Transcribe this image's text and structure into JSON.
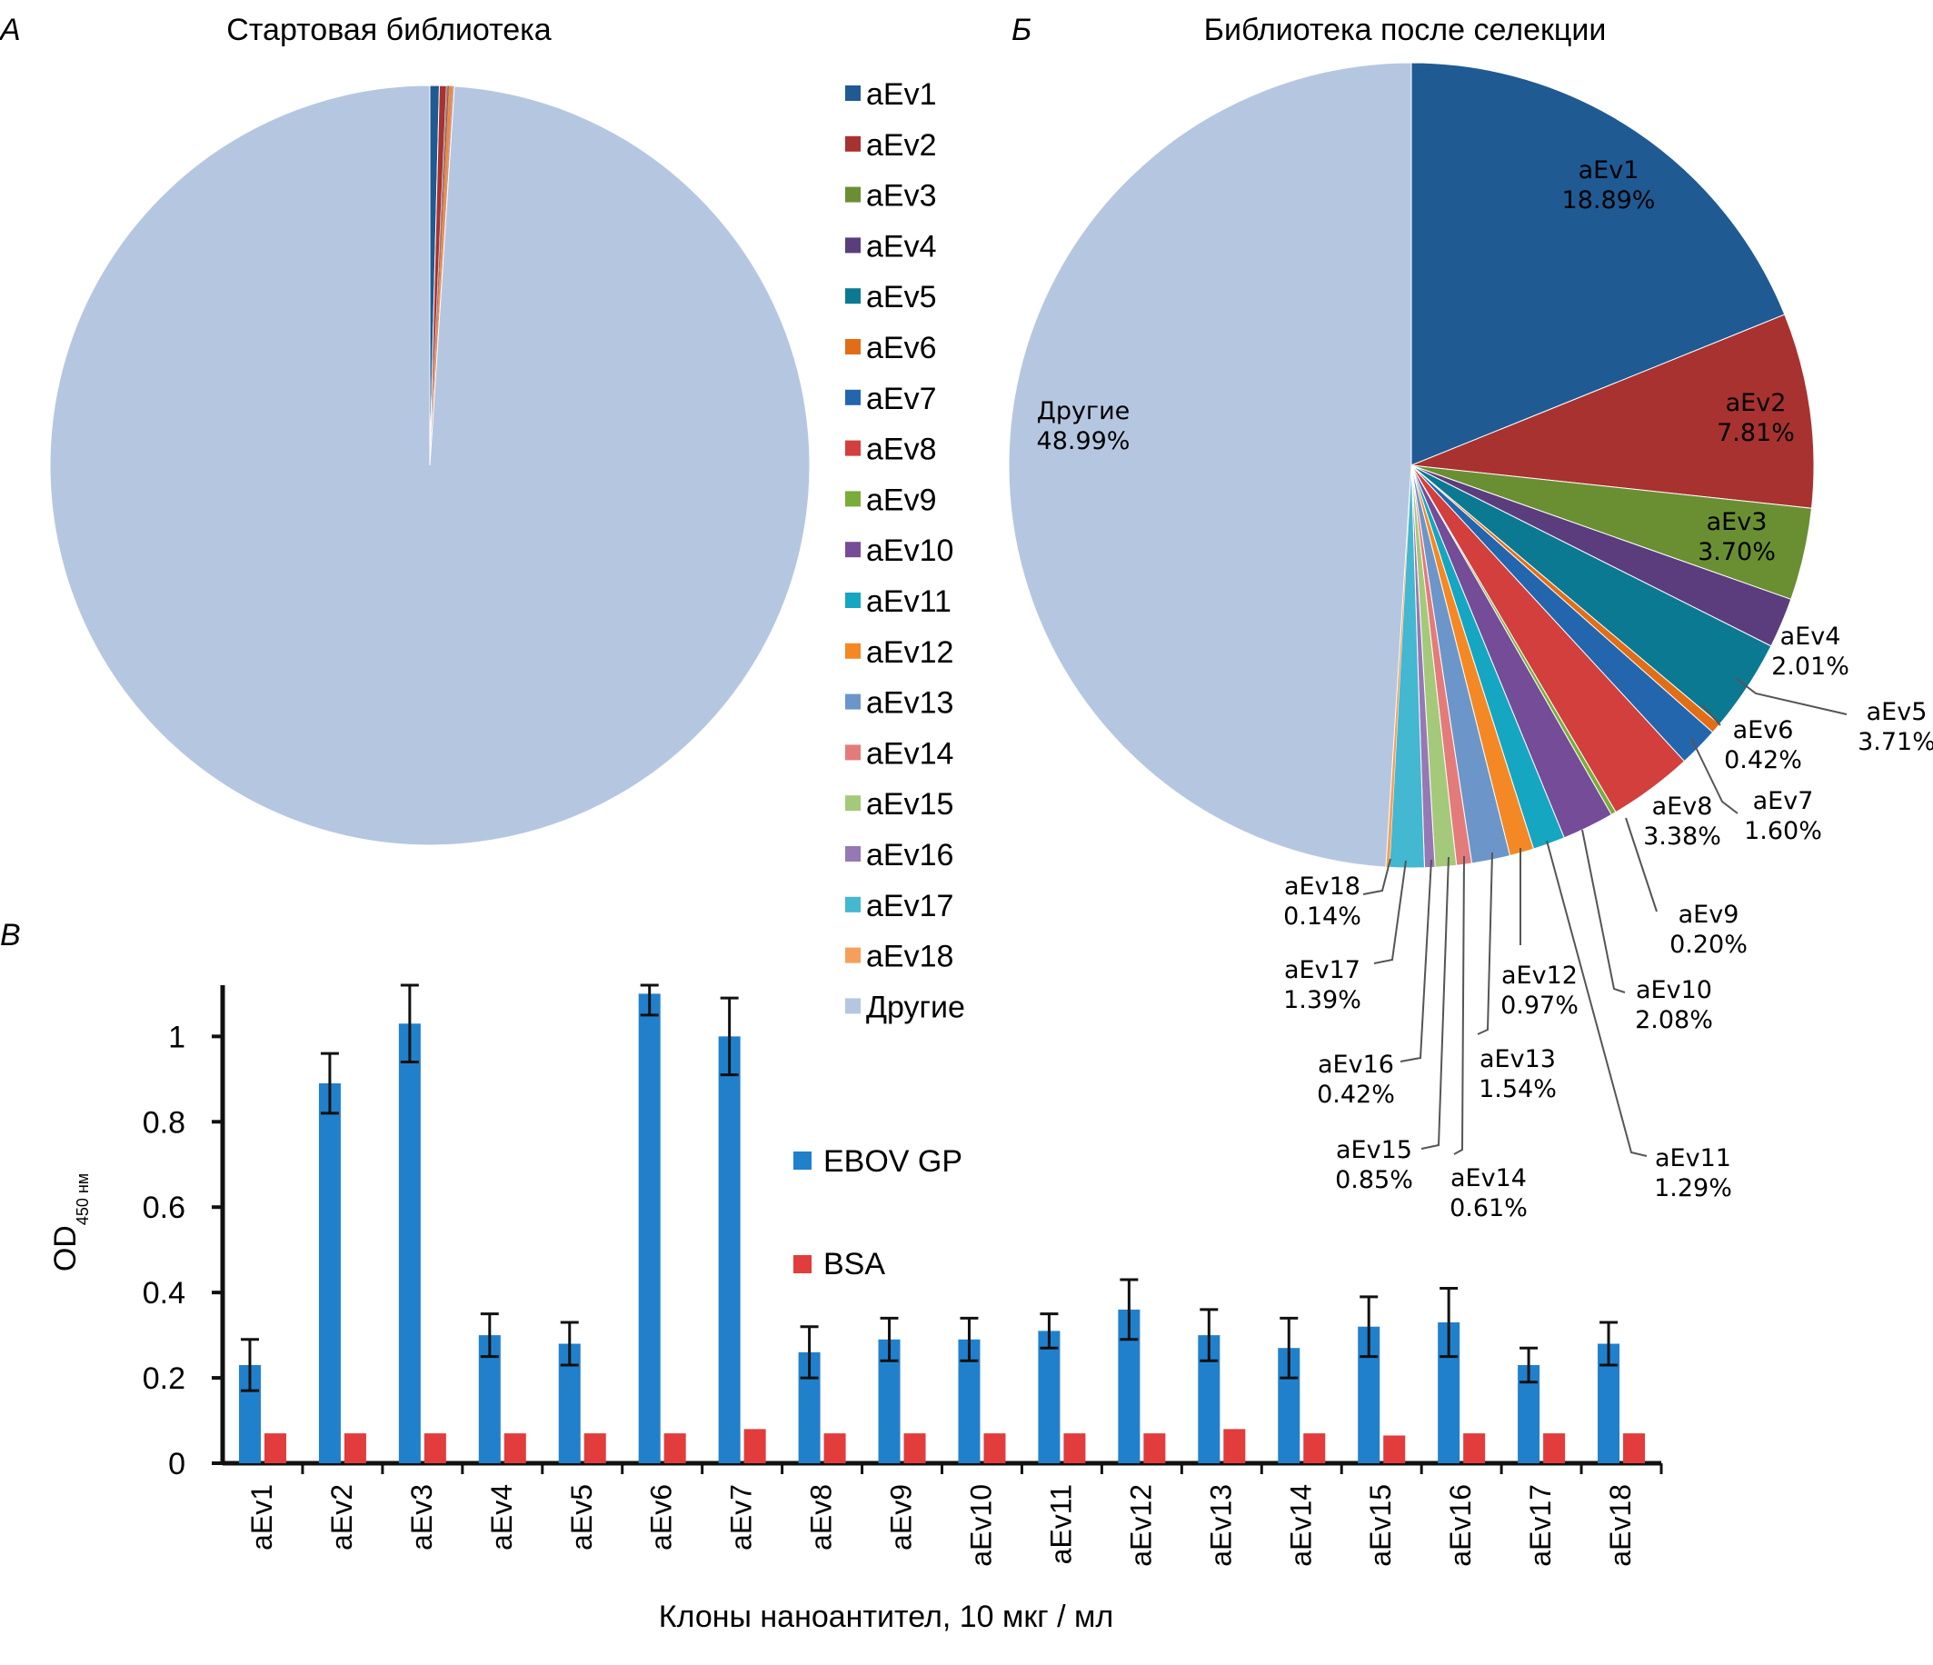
{
  "colors": {
    "aEv1": "#1f5a93",
    "aEv2": "#a83230",
    "aEv3": "#6a8f32",
    "aEv4": "#5b3d7d",
    "aEv5": "#0c7993",
    "aEv6": "#e16e17",
    "aEv7": "#2366ae",
    "aEv8": "#d23f3c",
    "aEv9": "#79ac3a",
    "aEv10": "#744c98",
    "aEv11": "#15a6c2",
    "aEv12": "#f48824",
    "aEv13": "#6c96c9",
    "aEv14": "#e47b7b",
    "aEv15": "#a5c97a",
    "aEv16": "#9678b4",
    "aEv17": "#44b7d1",
    "aEv18": "#f5a05a",
    "others": "#b5c7e0",
    "ebov": "#2180cc",
    "bsa": "#e23c3c",
    "axis": "#111111"
  },
  "legend": {
    "items": [
      "aEv1",
      "aEv2",
      "aEv3",
      "aEv4",
      "aEv5",
      "aEv6",
      "aEv7",
      "aEv8",
      "aEv9",
      "aEv10",
      "aEv11",
      "aEv12",
      "aEv13",
      "aEv14",
      "aEv15",
      "aEv16",
      "aEv17",
      "aEv18",
      "Другие"
    ]
  },
  "chart_data": [
    {
      "panel": "А",
      "type": "pie",
      "title": "Стартовая библиотека",
      "labels": [
        "aEv1",
        "aEv2",
        "aEv3",
        "aEv4",
        "aEv5",
        "aEv6",
        "aEv7",
        "aEv8",
        "aEv9",
        "aEv10",
        "aEv11",
        "aEv12",
        "aEv13",
        "aEv14",
        "aEv15",
        "aEv16",
        "aEv17",
        "aEv18",
        "Другие"
      ],
      "values": [
        0.4,
        0.3,
        0.01,
        0.01,
        0.01,
        0.01,
        0.01,
        0.05,
        0.01,
        0.01,
        0.01,
        0.1,
        0.01,
        0.05,
        0.01,
        0.01,
        0.01,
        0.01,
        99.0
      ],
      "start": "12 o'clock, clockwise",
      "legend": "right"
    },
    {
      "panel": "Б",
      "type": "pie",
      "title": "Библиотека после селекции",
      "labels": [
        "aEv1",
        "aEv2",
        "aEv3",
        "aEv4",
        "aEv5",
        "aEv6",
        "aEv7",
        "aEv8",
        "aEv9",
        "aEv10",
        "aEv11",
        "aEv12",
        "aEv13",
        "aEv14",
        "aEv15",
        "aEv16",
        "aEv17",
        "aEv18",
        "Другие"
      ],
      "values": [
        18.89,
        7.81,
        3.7,
        2.01,
        3.71,
        0.42,
        1.6,
        3.38,
        0.2,
        2.08,
        1.29,
        0.97,
        1.54,
        0.61,
        0.85,
        0.42,
        1.39,
        0.14,
        48.99
      ],
      "value_labels": [
        "18.89%",
        "7.81%",
        "3.70%",
        "2.01%",
        "3.71%",
        "0.42%",
        "1.60%",
        "3.38%",
        "0.20%",
        "2.08%",
        "1.29%",
        "0.97%",
        "1.54%",
        "0.61%",
        "0.85%",
        "0.42%",
        "1.39%",
        "0.14%",
        "48.99%"
      ],
      "start": "12 o'clock, clockwise"
    },
    {
      "panel": "В",
      "type": "bar",
      "categories": [
        "aEv1",
        "aEv2",
        "aEv3",
        "aEv4",
        "aEv5",
        "aEv6",
        "aEv7",
        "aEv8",
        "aEv9",
        "aEv10",
        "aEv11",
        "aEv12",
        "aEv13",
        "aEv14",
        "aEv15",
        "aEv16",
        "aEv17",
        "aEv18"
      ],
      "series": [
        {
          "name": "EBOV GP",
          "values": [
            0.23,
            0.89,
            1.03,
            0.3,
            0.28,
            1.1,
            1.0,
            0.26,
            0.29,
            0.29,
            0.31,
            0.36,
            0.3,
            0.27,
            0.32,
            0.33,
            0.23,
            0.28
          ],
          "errors": [
            0.06,
            0.07,
            0.09,
            0.05,
            0.05,
            0.05,
            0.09,
            0.06,
            0.05,
            0.05,
            0.04,
            0.07,
            0.06,
            0.07,
            0.07,
            0.08,
            0.04,
            0.05
          ]
        },
        {
          "name": "BSA",
          "values": [
            0.07,
            0.07,
            0.07,
            0.07,
            0.07,
            0.07,
            0.08,
            0.07,
            0.07,
            0.07,
            0.07,
            0.07,
            0.08,
            0.07,
            0.065,
            0.07,
            0.07,
            0.07
          ]
        }
      ],
      "ylim": [
        0,
        1.12
      ],
      "yticks": [
        "0",
        "0.2",
        "0.4",
        "0.6",
        "0.8",
        "1"
      ],
      "ylabel_main": "OD",
      "ylabel_sub": "450 нм",
      "xlabel": "Клоны наноантител, 10 мкг / мл",
      "grid": false,
      "legend": "right"
    }
  ]
}
